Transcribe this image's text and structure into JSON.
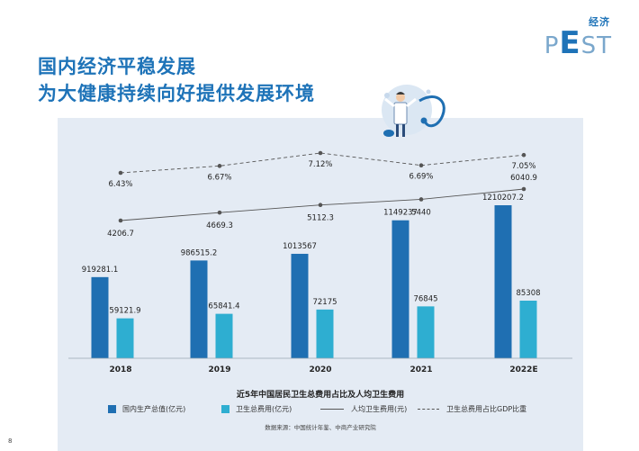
{
  "brand": {
    "tag": "经济",
    "word_pre": "P",
    "word_e": "E",
    "word_post": "ST"
  },
  "headline": {
    "line1": "国内经济平稳发展",
    "line2": "为大健康持续向好提供发展环境"
  },
  "chart_data": {
    "type": "bar",
    "title": "近5年中国居民卫生总费用占比及人均卫生费用",
    "categories": [
      "2018",
      "2019",
      "2020",
      "2021",
      "2022E"
    ],
    "series": [
      {
        "name": "国内生产总值(亿元)",
        "kind": "bar",
        "color": "#1f6fb2",
        "values": [
          919281.1,
          986515.2,
          1013567,
          1149237,
          1210207.2
        ],
        "labels": [
          "919281.1",
          "986515.2",
          "1013567",
          "1149237",
          "1210207.2"
        ]
      },
      {
        "name": "卫生总费用(亿元)",
        "kind": "bar",
        "color": "#2eaed1",
        "values": [
          59121.9,
          65841.4,
          72175,
          76845,
          85308
        ],
        "labels": [
          "59121.9",
          "65841.4",
          "72175",
          "76845",
          "85308"
        ]
      },
      {
        "name": "人均卫生费用(元)",
        "kind": "line",
        "style": "solid",
        "color": "#555555",
        "values": [
          4206.7,
          4669.3,
          5112.3,
          5440,
          6040.9
        ],
        "labels": [
          "4206.7",
          "4669.3",
          "5112.3",
          "5440",
          "6040.9"
        ]
      },
      {
        "name": "卫生总费用占比GDP比重",
        "kind": "line",
        "style": "dashed",
        "color": "#555555",
        "values": [
          6.43,
          6.67,
          7.12,
          6.69,
          7.05
        ],
        "labels": [
          "6.43%",
          "6.67%",
          "7.12%",
          "6.69%",
          "7.05%"
        ]
      }
    ],
    "legend_position": "bottom",
    "grid": false
  },
  "source": "数据来源：中国统计年鉴、中商产业研究院",
  "page_number": "8",
  "colors": {
    "title": "#1e73b8",
    "panel": "#e4ebf4",
    "gdp_bar": "#1f6fb2",
    "health_bar": "#2eaed1"
  },
  "decoration": {
    "illustration": "doctor-with-stethoscope-icon"
  }
}
